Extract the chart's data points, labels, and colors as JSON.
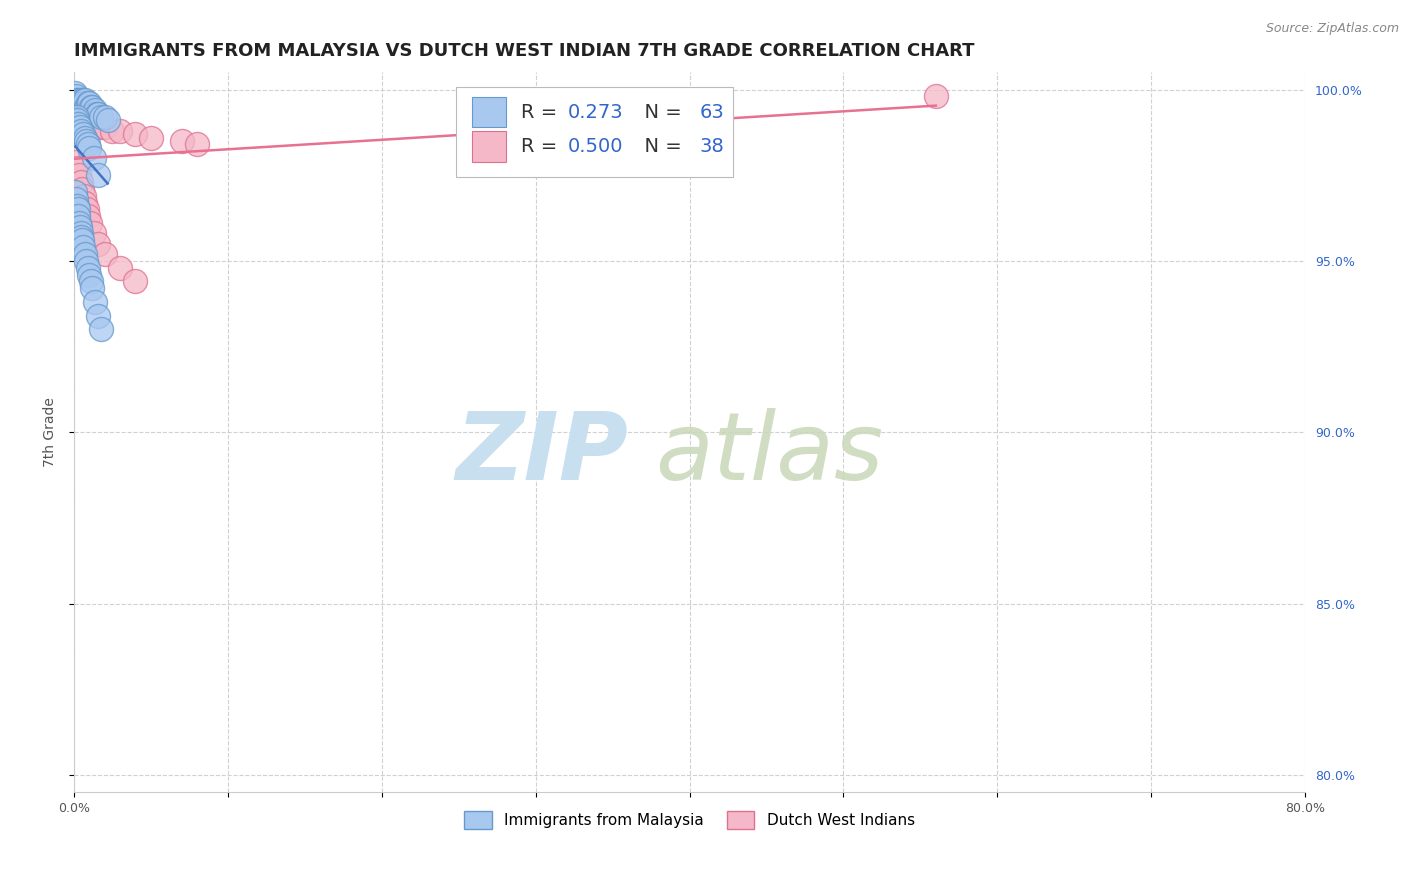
{
  "title": "IMMIGRANTS FROM MALAYSIA VS DUTCH WEST INDIAN 7TH GRADE CORRELATION CHART",
  "source": "Source: ZipAtlas.com",
  "ylabel": "7th Grade",
  "xlim": [
    0.0,
    80.0
  ],
  "ylim": [
    79.5,
    100.5
  ],
  "x_ticks": [
    0.0,
    10.0,
    20.0,
    30.0,
    40.0,
    50.0,
    60.0,
    70.0,
    80.0
  ],
  "x_tick_labels": [
    "0.0%",
    "",
    "",
    "",
    "",
    "",
    "",
    "",
    "80.0%"
  ],
  "y_ticks": [
    80.0,
    85.0,
    90.0,
    95.0,
    100.0
  ],
  "y_tick_labels": [
    "80.0%",
    "85.0%",
    "90.0%",
    "95.0%",
    "100.0%"
  ],
  "malaysia_color": "#A8C8F0",
  "malaysia_edge": "#6699CC",
  "dutch_color": "#F4B8C8",
  "dutch_edge": "#E07090",
  "trend_malaysia_color": "#4472C4",
  "trend_dutch_color": "#E87090",
  "R_malaysia": 0.273,
  "N_malaysia": 63,
  "R_dutch": 0.5,
  "N_dutch": 38,
  "malaysia_x": [
    0.1,
    0.15,
    0.2,
    0.25,
    0.3,
    0.35,
    0.4,
    0.45,
    0.5,
    0.55,
    0.6,
    0.65,
    0.7,
    0.75,
    0.8,
    0.85,
    0.9,
    0.95,
    1.0,
    1.05,
    1.1,
    1.15,
    1.2,
    1.3,
    1.4,
    1.5,
    1.6,
    1.8,
    2.0,
    2.2,
    0.1,
    0.15,
    0.2,
    0.25,
    0.3,
    0.35,
    0.4,
    0.45,
    0.5,
    0.55,
    0.6,
    0.7,
    0.8,
    0.9,
    1.0,
    1.1,
    1.2,
    1.4,
    1.6,
    1.8,
    0.12,
    0.18,
    0.22,
    0.3,
    0.4,
    0.5,
    0.6,
    0.7,
    0.8,
    0.9,
    1.0,
    1.3,
    1.6
  ],
  "malaysia_y": [
    99.9,
    99.8,
    99.7,
    99.6,
    99.7,
    99.6,
    99.5,
    99.7,
    99.6,
    99.4,
    99.7,
    99.6,
    99.4,
    99.7,
    99.5,
    99.3,
    99.6,
    99.4,
    99.6,
    99.3,
    99.5,
    99.3,
    99.5,
    99.3,
    99.4,
    99.3,
    99.3,
    99.2,
    99.2,
    99.1,
    97.0,
    96.8,
    96.6,
    96.5,
    96.3,
    96.1,
    96.0,
    95.8,
    95.7,
    95.6,
    95.4,
    95.2,
    95.0,
    94.8,
    94.6,
    94.4,
    94.2,
    93.8,
    93.4,
    93.0,
    99.0,
    99.2,
    99.1,
    99.0,
    98.9,
    98.8,
    98.7,
    98.6,
    98.5,
    98.4,
    98.3,
    98.0,
    97.5
  ],
  "dutch_x": [
    0.1,
    0.2,
    0.3,
    0.4,
    0.5,
    0.6,
    0.7,
    0.8,
    0.9,
    1.0,
    1.1,
    1.2,
    1.4,
    1.6,
    1.8,
    2.0,
    2.5,
    3.0,
    4.0,
    5.0,
    0.15,
    0.25,
    0.35,
    0.45,
    0.55,
    0.65,
    0.75,
    0.85,
    0.95,
    1.05,
    1.3,
    1.6,
    2.0,
    3.0,
    4.0,
    7.0,
    8.0,
    56.0
  ],
  "dutch_y": [
    99.7,
    99.6,
    99.6,
    99.6,
    99.5,
    99.5,
    99.4,
    99.4,
    99.3,
    99.3,
    99.2,
    99.2,
    99.1,
    99.0,
    98.9,
    98.9,
    98.8,
    98.8,
    98.7,
    98.6,
    97.9,
    97.7,
    97.5,
    97.3,
    97.1,
    96.9,
    96.7,
    96.5,
    96.3,
    96.1,
    95.8,
    95.5,
    95.2,
    94.8,
    94.4,
    98.5,
    98.4,
    99.8
  ],
  "background_color": "#FFFFFF",
  "grid_color": "#CCCCCC",
  "title_fontsize": 13,
  "axis_label_fontsize": 10,
  "tick_fontsize": 9,
  "legend_fontsize": 13,
  "watermark_zip_color": "#C8DFF0",
  "watermark_atlas_color": "#C8D8B8"
}
